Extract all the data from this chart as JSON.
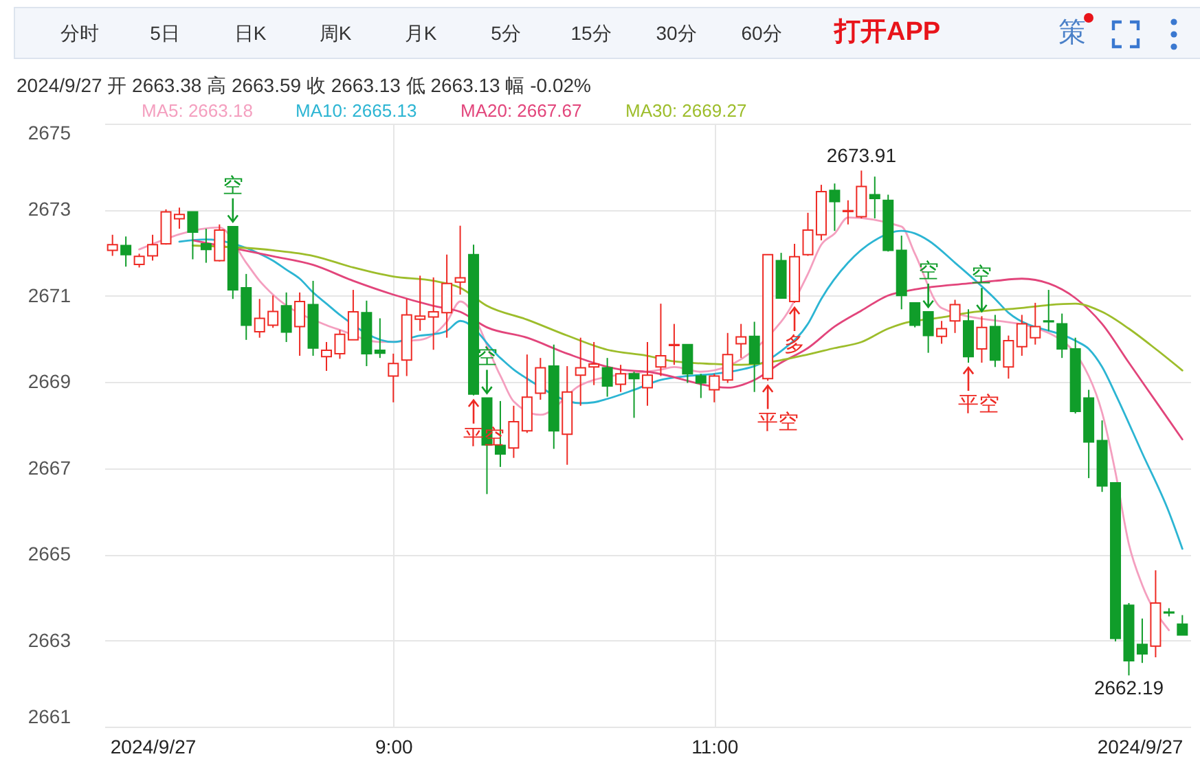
{
  "chart_data": [
    {
      "type": "other",
      "annotations": [
        "分时",
        "5日",
        "日K",
        "周K",
        "月K",
        "5分",
        "15分",
        "30分",
        "60分",
        "打开APP",
        "策"
      ]
    },
    {
      "type": "candlestick",
      "title": "2024/9/27 开 2663.38 高 2663.59 收 2663.13 低 2663.13 幅 -0.02%",
      "x": [
        "2024-09-27T07:15",
        "2024-09-27T07:20",
        "2024-09-27T07:25",
        "2024-09-27T07:30",
        "2024-09-27T07:35",
        "2024-09-27T07:40",
        "2024-09-27T07:45",
        "2024-09-27T07:50",
        "2024-09-27T07:55",
        "2024-09-27T08:00",
        "2024-09-27T08:05",
        "2024-09-27T08:10",
        "2024-09-27T08:15",
        "2024-09-27T08:20",
        "2024-09-27T08:25",
        "2024-09-27T08:30",
        "2024-09-27T08:35",
        "2024-09-27T08:40",
        "2024-09-27T08:45",
        "2024-09-27T08:50",
        "2024-09-27T08:55",
        "2024-09-27T09:00",
        "2024-09-27T09:05",
        "2024-09-27T09:10",
        "2024-09-27T09:15",
        "2024-09-27T09:20",
        "2024-09-27T09:25",
        "2024-09-27T09:30",
        "2024-09-27T09:35",
        "2024-09-27T09:40",
        "2024-09-27T09:45",
        "2024-09-27T09:50",
        "2024-09-27T09:55",
        "2024-09-27T10:00",
        "2024-09-27T10:05",
        "2024-09-27T10:10",
        "2024-09-27T10:15",
        "2024-09-27T10:20",
        "2024-09-27T10:25",
        "2024-09-27T10:30",
        "2024-09-27T10:35",
        "2024-09-27T10:40",
        "2024-09-27T10:45",
        "2024-09-27T10:50",
        "2024-09-27T10:55",
        "2024-09-27T11:00",
        "2024-09-27T11:05",
        "2024-09-27T11:10",
        "2024-09-27T11:15",
        "2024-09-27T11:20",
        "2024-09-27T11:25",
        "2024-09-27T11:30",
        "2024-09-27T11:35",
        "2024-09-27T11:40",
        "2024-09-27T11:45",
        "2024-09-27T11:50",
        "2024-09-27T11:55",
        "2024-09-27T12:00",
        "2024-09-27T12:05",
        "2024-09-27T12:10",
        "2024-09-27T12:15",
        "2024-09-27T12:20",
        "2024-09-27T12:25",
        "2024-09-27T12:30",
        "2024-09-27T12:35",
        "2024-09-27T12:40",
        "2024-09-27T12:45",
        "2024-09-27T12:50",
        "2024-09-27T12:55",
        "2024-09-27T13:00",
        "2024-09-27T13:05",
        "2024-09-27T13:10",
        "2024-09-27T13:15",
        "2024-09-27T13:20",
        "2024-09-27T13:25",
        "2024-09-27T13:30",
        "2024-09-27T13:35",
        "2024-09-27T13:40",
        "2024-09-27T13:45",
        "2024-09-27T13:50",
        "2024-09-27T13:55"
      ],
      "ohlc": [
        [
          2672.06,
          2672.42,
          2671.93,
          2672.19
        ],
        [
          2672.17,
          2672.38,
          2671.68,
          2671.96
        ],
        [
          2671.73,
          2671.98,
          2671.66,
          2671.92
        ],
        [
          2671.93,
          2672.42,
          2671.82,
          2672.19
        ],
        [
          2672.21,
          2673.01,
          2672.19,
          2672.95
        ],
        [
          2672.79,
          2673.05,
          2672.56,
          2672.89
        ],
        [
          2672.95,
          2672.95,
          2671.85,
          2672.48
        ],
        [
          2672.21,
          2672.56,
          2671.77,
          2672.08
        ],
        [
          2671.82,
          2672.66,
          2671.8,
          2672.53
        ],
        [
          2672.61,
          2672.61,
          2670.93,
          2671.14
        ],
        [
          2671.19,
          2671.51,
          2669.98,
          2670.32
        ],
        [
          2670.17,
          2670.93,
          2670.03,
          2670.48
        ],
        [
          2670.32,
          2671.01,
          2670.26,
          2670.64
        ],
        [
          2670.77,
          2671.08,
          2669.93,
          2670.16
        ],
        [
          2670.29,
          2671.08,
          2669.61,
          2670.87
        ],
        [
          2670.8,
          2671.35,
          2669.61,
          2669.79
        ],
        [
          2669.59,
          2669.93,
          2669.26,
          2669.74
        ],
        [
          2669.66,
          2670.21,
          2669.54,
          2670.11
        ],
        [
          2669.98,
          2671.14,
          2669.98,
          2670.63
        ],
        [
          2670.61,
          2670.89,
          2669.37,
          2669.66
        ],
        [
          2669.74,
          2670.48,
          2669.56,
          2669.67
        ],
        [
          2669.14,
          2669.66,
          2668.53,
          2669.43
        ],
        [
          2669.51,
          2670.93,
          2669.14,
          2670.56
        ],
        [
          2670.46,
          2671.47,
          2670.19,
          2670.53
        ],
        [
          2670.51,
          2671.43,
          2669.75,
          2670.63
        ],
        [
          2670.61,
          2671.96,
          2670.03,
          2671.29
        ],
        [
          2671.32,
          2672.63,
          2671.03,
          2671.42
        ],
        [
          2671.96,
          2672.19,
          2668.69,
          2668.72
        ],
        [
          2668.63,
          2668.63,
          2666.4,
          2667.54
        ],
        [
          2667.53,
          2668.56,
          2667.03,
          2667.33
        ],
        [
          2667.47,
          2668.45,
          2667.24,
          2668.08
        ],
        [
          2667.87,
          2669.64,
          2667.82,
          2668.65
        ],
        [
          2668.74,
          2669.56,
          2668.59,
          2669.33
        ],
        [
          2669.37,
          2669.87,
          2667.45,
          2667.87
        ],
        [
          2667.79,
          2669.37,
          2667.08,
          2668.77
        ],
        [
          2669.16,
          2670.03,
          2668.45,
          2669.33
        ],
        [
          2669.35,
          2669.93,
          2668.93,
          2669.42
        ],
        [
          2669.33,
          2669.56,
          2668.66,
          2668.91
        ],
        [
          2668.95,
          2669.4,
          2668.77,
          2669.19
        ],
        [
          2669.19,
          2669.24,
          2668.17,
          2669.08
        ],
        [
          2668.87,
          2669.93,
          2668.45,
          2669.16
        ],
        [
          2669.35,
          2670.82,
          2669.14,
          2669.61
        ],
        [
          2669.85,
          2670.35,
          2669.4,
          2669.87
        ],
        [
          2669.87,
          2669.87,
          2668.98,
          2669.19
        ],
        [
          2669.14,
          2669.19,
          2668.63,
          2668.98
        ],
        [
          2668.82,
          2669.19,
          2668.53,
          2669.14
        ],
        [
          2669.05,
          2670.14,
          2668.98,
          2669.64
        ],
        [
          2669.89,
          2670.35,
          2669.56,
          2670.05
        ],
        [
          2670.06,
          2670.4,
          2668.77,
          2669.43
        ],
        [
          2669.08,
          2671.96,
          2669.03,
          2671.96
        ],
        [
          2671.82,
          2672.0,
          2670.95,
          2670.95
        ],
        [
          2670.87,
          2672.21,
          2670.84,
          2671.91
        ],
        [
          2671.96,
          2672.93,
          2671.93,
          2672.53
        ],
        [
          2672.42,
          2673.58,
          2672.29,
          2673.42
        ],
        [
          2673.45,
          2673.61,
          2672.51,
          2673.19
        ],
        [
          2672.96,
          2673.22,
          2672.66,
          2672.98
        ],
        [
          2672.84,
          2673.91,
          2672.8,
          2673.54
        ],
        [
          2673.35,
          2673.77,
          2672.8,
          2673.26
        ],
        [
          2673.22,
          2673.35,
          2672.03,
          2672.06
        ],
        [
          2672.06,
          2672.4,
          2670.69,
          2671.01
        ],
        [
          2670.84,
          2670.84,
          2670.27,
          2670.32
        ],
        [
          2670.63,
          2670.63,
          2669.68,
          2670.08
        ],
        [
          2670.06,
          2670.42,
          2669.89,
          2670.24
        ],
        [
          2670.42,
          2670.91,
          2670.14,
          2670.8
        ],
        [
          2670.42,
          2670.69,
          2669.45,
          2669.59
        ],
        [
          2669.77,
          2670.53,
          2669.45,
          2670.27
        ],
        [
          2670.29,
          2670.56,
          2669.35,
          2669.51
        ],
        [
          2669.35,
          2670.08,
          2669.08,
          2669.96
        ],
        [
          2669.82,
          2670.56,
          2669.61,
          2670.35
        ],
        [
          2670.03,
          2670.84,
          2669.87,
          2670.29
        ],
        [
          2670.42,
          2671.14,
          2670.19,
          2670.4
        ],
        [
          2670.35,
          2670.59,
          2669.56,
          2669.77
        ],
        [
          2669.77,
          2670.03,
          2668.27,
          2668.32
        ],
        [
          2668.63,
          2668.82,
          2666.77,
          2667.61
        ],
        [
          2667.64,
          2668.11,
          2666.45,
          2666.59
        ],
        [
          2666.66,
          2666.66,
          2662.98,
          2663.05
        ],
        [
          2663.82,
          2663.87,
          2662.19,
          2662.53
        ],
        [
          2662.91,
          2663.51,
          2662.48,
          2662.69
        ],
        [
          2662.87,
          2664.63,
          2662.61,
          2663.87
        ],
        [
          2663.66,
          2663.75,
          2663.56,
          2663.64
        ],
        [
          2663.38,
          2663.59,
          2663.13,
          2663.13
        ]
      ],
      "colors": [
        "#ee2a24",
        "#109d2a",
        "#ee2a24",
        "#ee2a24",
        "#ee2a24",
        "#ee2a24",
        "#109d2a",
        "#109d2a",
        "#ee2a24",
        "#109d2a",
        "#109d2a",
        "#ee2a24",
        "#ee2a24",
        "#109d2a",
        "#ee2a24",
        "#109d2a",
        "#ee2a24",
        "#ee2a24",
        "#ee2a24",
        "#109d2a",
        "#109d2a",
        "#ee2a24",
        "#ee2a24",
        "#ee2a24",
        "#ee2a24",
        "#ee2a24",
        "#ee2a24",
        "#109d2a",
        "#109d2a",
        "#109d2a",
        "#ee2a24",
        "#ee2a24",
        "#ee2a24",
        "#109d2a",
        "#ee2a24",
        "#ee2a24",
        "#ee2a24",
        "#109d2a",
        "#ee2a24",
        "#109d2a",
        "#ee2a24",
        "#ee2a24",
        "#ee2a24",
        "#109d2a",
        "#109d2a",
        "#ee2a24",
        "#ee2a24",
        "#ee2a24",
        "#109d2a",
        "#ee2a24",
        "#109d2a",
        "#ee2a24",
        "#ee2a24",
        "#ee2a24",
        "#109d2a",
        "#ee2a24",
        "#ee2a24",
        "#109d2a",
        "#109d2a",
        "#109d2a",
        "#109d2a",
        "#109d2a",
        "#ee2a24",
        "#ee2a24",
        "#109d2a",
        "#ee2a24",
        "#109d2a",
        "#ee2a24",
        "#ee2a24",
        "#ee2a24",
        "#109d2a",
        "#109d2a",
        "#109d2a",
        "#109d2a",
        "#109d2a",
        "#109d2a",
        "#109d2a",
        "#109d2a",
        "#ee2a24",
        "#109d2a",
        "#109d2a"
      ],
      "series": [
        {
          "name": "MA5: 2663.18",
          "type": "line",
          "color": "#f49fbf",
          "x": [
            "2024-09-27T07:25",
            "2024-09-27T07:55",
            "2024-09-27T08:05",
            "2024-09-27T08:10",
            "2024-09-27T08:15",
            "2024-09-27T08:35",
            "2024-09-27T08:40",
            "2024-09-27T08:55",
            "2024-09-27T09:10",
            "2024-09-27T09:20",
            "2024-09-27T09:25",
            "2024-09-27T09:40",
            "2024-09-27T09:45",
            "2024-09-27T09:55",
            "2024-09-27T10:10",
            "2024-09-27T10:15",
            "2024-09-27T10:40",
            "2024-09-27T10:45",
            "2024-09-27T10:55",
            "2024-09-27T11:25",
            "2024-09-27T11:35",
            "2024-09-27T11:40",
            "2024-09-27T11:45",
            "2024-09-27T11:50",
            "2024-09-27T12:10",
            "2024-09-27T12:15",
            "2024-09-27T12:25",
            "2024-09-27T13:05",
            "2024-09-27T13:20",
            "2024-09-27T13:25",
            "2024-09-27T13:30",
            "2024-09-27T13:35",
            "2024-09-27T13:40",
            "2024-09-27T13:50"
          ],
          "values": [
            2672.08,
            2672.59,
            2671.77,
            2671.35,
            2671.03,
            2670.32,
            2670.21,
            2669.93,
            2669.98,
            2670.4,
            2670.87,
            2669.15,
            2668.55,
            2668.24,
            2668.93,
            2669.05,
            2669.29,
            2669.35,
            2669.24,
            2670.4,
            2671.51,
            2672.19,
            2672.45,
            2672.82,
            2672.61,
            2671.98,
            2670.72,
            2670.14,
            2669.14,
            2668.29,
            2666.9,
            2665.24,
            2664.29,
            2663.24
          ]
        },
        {
          "name": "MA10: 2665.13",
          "type": "line",
          "color": "#2cb5d3",
          "x": [
            "2024-09-27T07:40",
            "2024-09-27T07:50",
            "2024-09-27T08:10",
            "2024-09-27T08:15",
            "2024-09-27T08:20",
            "2024-09-27T08:25",
            "2024-09-27T08:30",
            "2024-09-27T08:35",
            "2024-09-27T08:40",
            "2024-09-27T09:00",
            "2024-09-27T09:10",
            "2024-09-27T09:15",
            "2024-09-27T09:20",
            "2024-09-27T09:25",
            "2024-09-27T09:40",
            "2024-09-27T09:45",
            "2024-09-27T09:50",
            "2024-09-27T10:10",
            "2024-09-27T10:15",
            "2024-09-27T10:20",
            "2024-09-27T10:30",
            "2024-09-27T10:40",
            "2024-09-27T10:50",
            "2024-09-27T11:00",
            "2024-09-27T11:10",
            "2024-09-27T11:15",
            "2024-09-27T11:25",
            "2024-09-27T11:35",
            "2024-09-27T11:40",
            "2024-09-27T11:50",
            "2024-09-27T12:00",
            "2024-09-27T12:10",
            "2024-09-27T12:15",
            "2024-09-27T12:20",
            "2024-09-27T12:30",
            "2024-09-27T12:45",
            "2024-09-27T12:50",
            "2024-09-27T13:15",
            "2024-09-27T13:20",
            "2024-09-27T13:25",
            "2024-09-27T13:30",
            "2024-09-27T13:40",
            "2024-09-27T13:50",
            "2024-09-27T13:55"
          ],
          "values": [
            2672.26,
            2672.31,
            2671.98,
            2671.82,
            2671.61,
            2671.4,
            2671.08,
            2670.82,
            2670.56,
            2669.93,
            2670.08,
            2670.11,
            2670.19,
            2670.42,
            2669.56,
            2669.29,
            2669.08,
            2668.51,
            2668.53,
            2668.61,
            2668.82,
            2669.05,
            2669.14,
            2669.19,
            2669.29,
            2669.37,
            2669.72,
            2670.35,
            2670.93,
            2671.77,
            2672.29,
            2672.51,
            2672.45,
            2672.29,
            2671.77,
            2670.93,
            2670.61,
            2669.96,
            2669.77,
            2669.35,
            2668.72,
            2667.35,
            2665.98,
            2665.13
          ]
        },
        {
          "name": "MA20: 2667.67",
          "type": "line",
          "color": "#e2457b",
          "x": [
            "2024-09-27T07:45",
            "2024-09-27T08:15",
            "2024-09-27T08:30",
            "2024-09-27T08:45",
            "2024-09-27T09:00",
            "2024-09-27T09:15",
            "2024-09-27T09:25",
            "2024-09-27T09:35",
            "2024-09-27T09:50",
            "2024-09-27T10:05",
            "2024-09-27T10:25",
            "2024-09-27T10:35",
            "2024-09-27T11:05",
            "2024-09-27T11:15",
            "2024-09-27T11:25",
            "2024-09-27T11:35",
            "2024-09-27T11:45",
            "2024-09-27T11:55",
            "2024-09-27T12:05",
            "2024-09-27T12:15",
            "2024-09-27T12:35",
            "2024-09-27T12:45",
            "2024-09-27T12:55",
            "2024-09-27T13:05",
            "2024-09-27T13:15",
            "2024-09-27T13:25",
            "2024-09-27T13:35",
            "2024-09-27T13:45",
            "2024-09-27T13:55"
          ],
          "values": [
            2672.29,
            2671.92,
            2671.72,
            2671.35,
            2671.03,
            2670.77,
            2670.63,
            2670.27,
            2670.03,
            2669.66,
            2669.29,
            2669.24,
            2668.87,
            2669.05,
            2669.45,
            2669.79,
            2670.29,
            2670.66,
            2671.01,
            2671.15,
            2671.29,
            2671.35,
            2671.4,
            2671.29,
            2670.95,
            2670.35,
            2669.45,
            2668.56,
            2667.67
          ]
        },
        {
          "name": "MA30: 2669.27",
          "type": "line",
          "color": "#9dbd2b",
          "x": [
            "2024-09-27T07:45",
            "2024-09-27T08:15",
            "2024-09-27T08:30",
            "2024-09-27T08:45",
            "2024-09-27T09:00",
            "2024-09-27T09:15",
            "2024-09-27T09:25",
            "2024-09-27T09:35",
            "2024-09-27T09:50",
            "2024-09-27T10:05",
            "2024-09-27T10:20",
            "2024-09-27T10:35",
            "2024-09-27T10:45",
            "2024-09-27T11:00",
            "2024-09-27T11:10",
            "2024-09-27T11:35",
            "2024-09-27T11:45",
            "2024-09-27T11:55",
            "2024-09-27T12:05",
            "2024-09-27T12:10",
            "2024-09-27T12:25",
            "2024-09-27T12:35",
            "2024-09-27T12:55",
            "2024-09-27T13:05",
            "2024-09-27T13:15",
            "2024-09-27T13:25",
            "2024-09-27T13:35",
            "2024-09-27T13:45",
            "2024-09-27T13:55"
          ],
          "values": [
            2672.17,
            2672.06,
            2671.93,
            2671.66,
            2671.45,
            2671.35,
            2671.19,
            2670.77,
            2670.45,
            2670.08,
            2669.75,
            2669.61,
            2669.48,
            2669.42,
            2669.4,
            2669.64,
            2669.79,
            2669.93,
            2670.24,
            2670.35,
            2670.5,
            2670.61,
            2670.72,
            2670.79,
            2670.82,
            2670.63,
            2670.24,
            2669.77,
            2669.27
          ]
        }
      ],
      "xlim": [
        "2024-09-27T07:12",
        "2024-09-27T13:58"
      ],
      "xticks": [
        {
          "value": "2024-09-27T07:30",
          "label": "2024/9/27"
        },
        {
          "value": "2024-09-27T09:00",
          "label": "9:00"
        },
        {
          "value": "2024-09-27T11:00",
          "label": "11:00"
        },
        {
          "value": "2024-09-27T13:39",
          "label": "2024/9/27"
        }
      ],
      "ylim": [
        2661,
        2675
      ],
      "yticks": [
        2661,
        2663,
        2665,
        2667,
        2669,
        2671,
        2673,
        2675
      ],
      "grid": true,
      "legend": "top left",
      "annotations": [
        {
          "text": "2673.91",
          "x": "2024-09-27T11:55",
          "y": 2673.91
        },
        {
          "text": "2662.19",
          "x": "2024-09-27T13:35",
          "y": 2662.19
        },
        {
          "text": "空",
          "x": "2024-09-27T08:00",
          "y": 2672.61
        },
        {
          "text": "平空",
          "x": "2024-09-27T09:30",
          "y": 2668.69
        },
        {
          "text": "空",
          "x": "2024-09-27T09:35",
          "y": 2668.63
        },
        {
          "text": "平空",
          "x": "2024-09-27T11:20",
          "y": 2669.03
        },
        {
          "text": "多",
          "x": "2024-09-27T11:30",
          "y": 2670.84
        },
        {
          "text": "空",
          "x": "2024-09-27T12:20",
          "y": 2670.63
        },
        {
          "text": "平空",
          "x": "2024-09-27T12:35",
          "y": 2669.45
        },
        {
          "text": "空",
          "x": "2024-09-27T12:40",
          "y": 2670.53
        }
      ]
    }
  ]
}
